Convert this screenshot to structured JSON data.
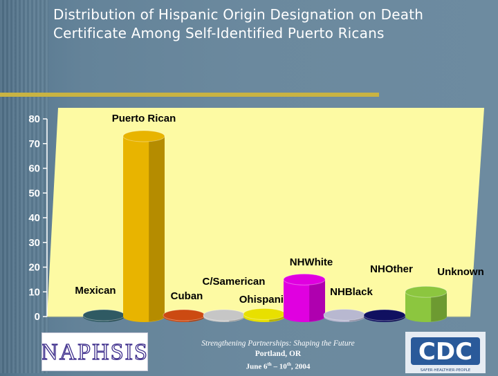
{
  "slide": {
    "title": "Distribution of Hispanic Origin Designation on Death Certificate Among Self-Identified Puerto Ricans"
  },
  "footer": {
    "line1": "Strengthening Partnerships: Shaping the Future",
    "line2": "Portland, OR",
    "date_prefix": "June 6",
    "date_sup1": "th",
    "date_mid": " – 10",
    "date_sup2": "th",
    "date_suffix": ", 2004",
    "left_logo_text": "NAPHSIS",
    "right_logo_text": "CDC",
    "right_logo_tagline": "SAFER·HEALTHIER·PEOPLE"
  },
  "chart_data": {
    "type": "bar",
    "title": "",
    "xlabel": "",
    "ylabel": "",
    "ylim": [
      0,
      80
    ],
    "yticks": [
      "0",
      "10",
      "20",
      "30",
      "40",
      "50",
      "60",
      "70",
      "80"
    ],
    "grid": false,
    "legend": "none",
    "categories": [
      "Mexican",
      "Puerto Rican",
      "Cuban",
      "C/Samerican",
      "Ohispanic",
      "NHWhite",
      "NHBlack",
      "NHOther",
      "Unknown"
    ],
    "values": [
      0.5,
      73,
      0.5,
      0.5,
      1,
      15,
      0.7,
      0.3,
      10
    ],
    "colors": [
      "#2f5a63",
      "#e8b400",
      "#cc4a12",
      "#c6c6c6",
      "#e8e000",
      "#e000e0",
      "#b8b8d0",
      "#101060",
      "#8cc63f"
    ],
    "plot_background": "#fdfaa3"
  }
}
